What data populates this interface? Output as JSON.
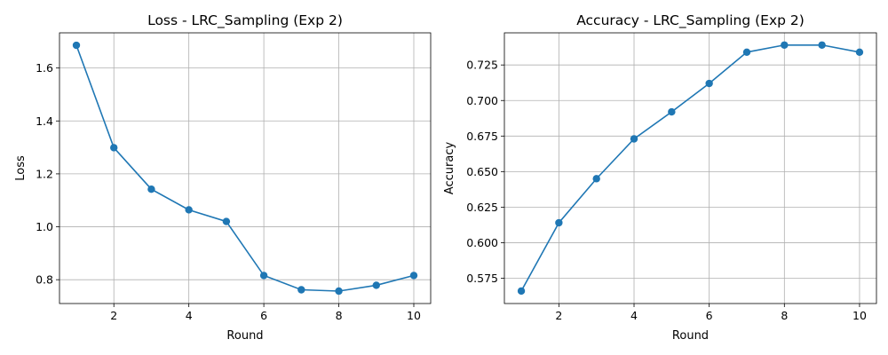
{
  "chart_data": [
    {
      "type": "line",
      "title": "Loss - LRC_Sampling  (Exp 2)",
      "xlabel": "Round",
      "ylabel": "Loss",
      "x": [
        1,
        2,
        3,
        4,
        5,
        6,
        7,
        8,
        9,
        10
      ],
      "series": [
        {
          "values": [
            1.686,
            1.299,
            1.142,
            1.064,
            1.02,
            0.816,
            0.762,
            0.757,
            0.779,
            0.816
          ],
          "color": "#1f77b4"
        }
      ],
      "xlim": [
        0.55,
        10.45
      ],
      "ylim": [
        0.71,
        1.733
      ],
      "xticks": [
        2,
        4,
        6,
        8,
        10
      ],
      "yticks": [
        0.8,
        1.0,
        1.2,
        1.4,
        1.6
      ],
      "ytick_labels": [
        "0.8",
        "1.0",
        "1.2",
        "1.4",
        "1.6"
      ],
      "grid": true,
      "marker": "circle"
    },
    {
      "type": "line",
      "title": "Accuracy - LRC_Sampling  (Exp 2)",
      "xlabel": "Round",
      "ylabel": "Accuracy",
      "x": [
        1,
        2,
        3,
        4,
        5,
        6,
        7,
        8,
        9,
        10
      ],
      "series": [
        {
          "values": [
            0.566,
            0.614,
            0.645,
            0.673,
            0.692,
            0.712,
            0.734,
            0.739,
            0.739,
            0.734
          ],
          "color": "#1f77b4"
        }
      ],
      "xlim": [
        0.55,
        10.45
      ],
      "ylim": [
        0.5572,
        0.7476
      ],
      "xticks": [
        2,
        4,
        6,
        8,
        10
      ],
      "yticks": [
        0.575,
        0.6,
        0.625,
        0.65,
        0.675,
        0.7,
        0.725
      ],
      "ytick_labels": [
        "0.575",
        "0.600",
        "0.625",
        "0.650",
        "0.675",
        "0.700",
        "0.725"
      ],
      "grid": true,
      "marker": "circle"
    }
  ]
}
